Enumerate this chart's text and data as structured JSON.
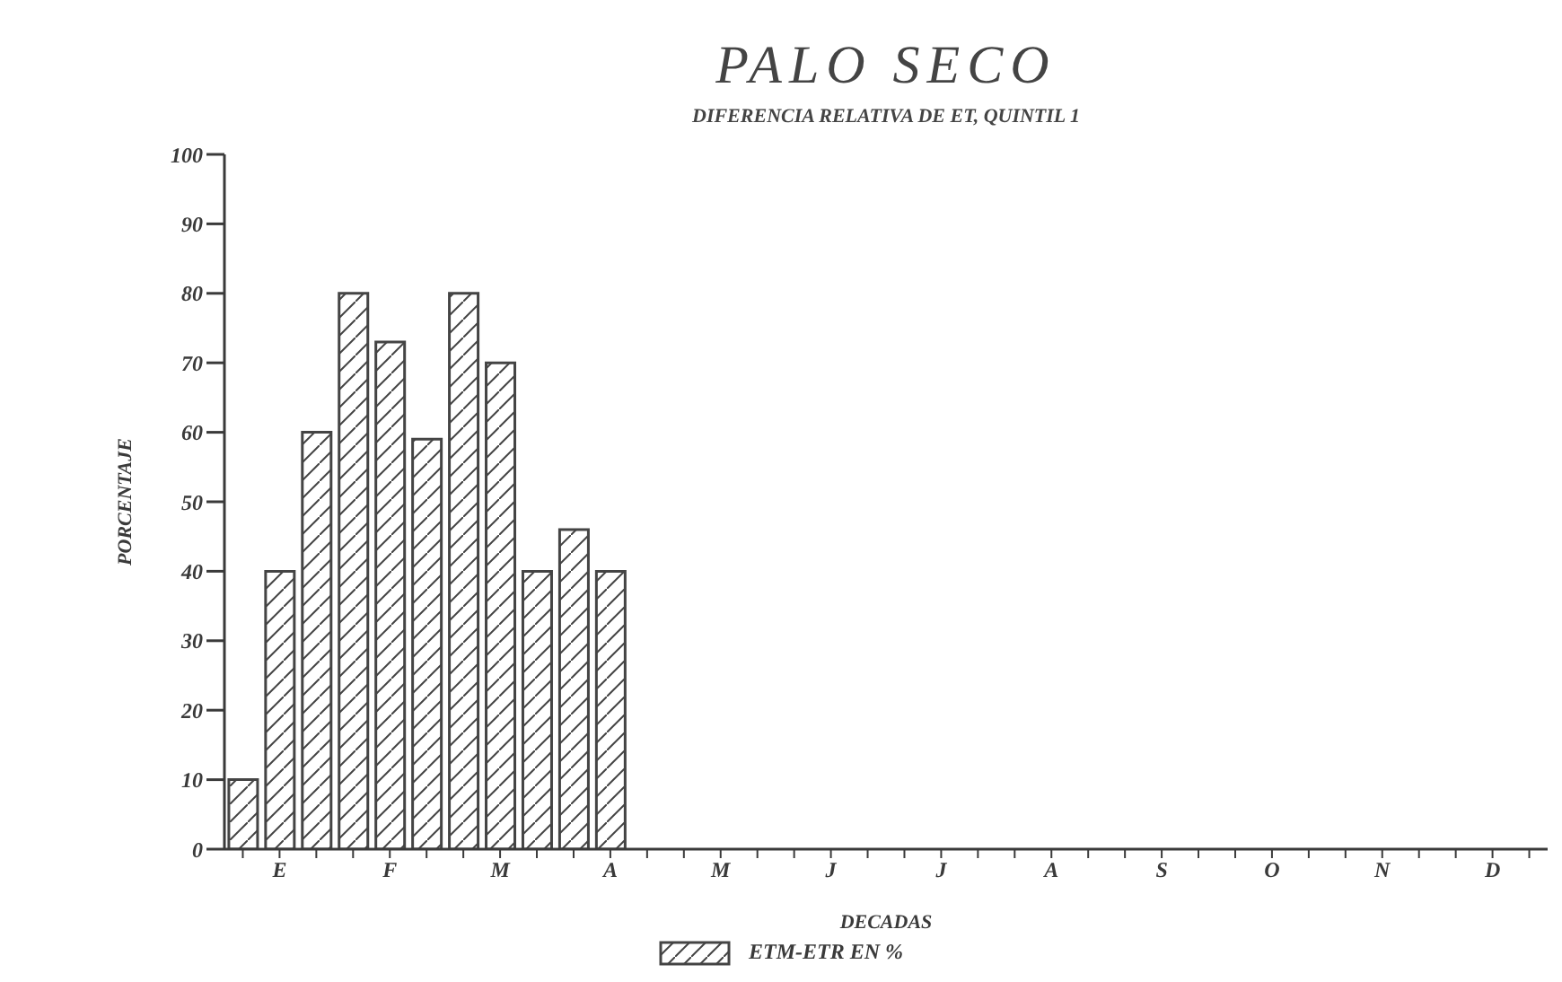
{
  "chart_data": {
    "type": "bar",
    "title": "PALO SECO",
    "subtitle": "DIFERENCIA RELATIVA DE ET, QUINTIL 1",
    "xlabel": "DECADAS",
    "ylabel": "PORCENTAJE",
    "categories": [
      null,
      "E",
      null,
      null,
      "F",
      null,
      null,
      "M",
      null,
      null,
      "A",
      null,
      null,
      "M",
      null,
      null,
      "J",
      null,
      null,
      "J",
      null,
      null,
      "A",
      null,
      null,
      "S",
      null,
      null,
      "O",
      null,
      null,
      "N",
      null,
      null,
      "D",
      null
    ],
    "series": [
      {
        "name": "ETM-ETR EN %",
        "color": "#444444",
        "values": [
          10,
          40,
          60,
          80,
          73,
          59,
          80,
          70,
          40,
          46,
          40,
          null,
          null,
          null,
          null,
          null,
          null,
          null,
          null,
          null,
          null,
          null,
          null,
          null,
          null,
          null,
          null,
          null,
          null,
          null,
          null,
          null,
          null,
          null,
          null,
          null
        ]
      }
    ],
    "ylim": [
      0,
      100
    ],
    "yticks": [
      0,
      10,
      20,
      30,
      40,
      50,
      60,
      70,
      80,
      90,
      100
    ],
    "grid": false,
    "legend": "bottom"
  }
}
